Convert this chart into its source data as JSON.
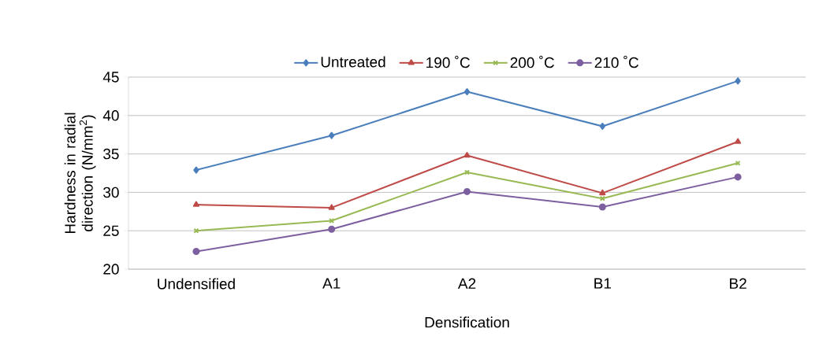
{
  "chart_data": {
    "type": "line",
    "xlabel": "Densification",
    "ylabel": "Hardness in radial direction (N/mm$^{2}$)",
    "categories": [
      "Undensified",
      "A1",
      "A2",
      "B1",
      "B2"
    ],
    "series": [
      {
        "name": "Untreated",
        "color": "#4a7ebb",
        "marker": "diamond",
        "values": [
          32.9,
          37.4,
          43.1,
          38.6,
          44.5
        ]
      },
      {
        "name": "190 ˚C",
        "color": "#be4b48",
        "marker": "triangle",
        "values": [
          28.4,
          28.0,
          34.8,
          29.9,
          36.6
        ]
      },
      {
        "name": "200 ˚C",
        "color": "#98b954",
        "marker": "cross",
        "values": [
          25.0,
          26.3,
          32.6,
          29.2,
          33.8
        ]
      },
      {
        "name": "210 ˚C",
        "color": "#7d5fa0",
        "marker": "circle",
        "values": [
          22.3,
          25.2,
          30.1,
          28.1,
          32.0
        ]
      }
    ],
    "ylim": [
      20,
      45
    ],
    "yticks": [
      20,
      25,
      30,
      35,
      40,
      45
    ],
    "grid": "y",
    "legend": "top",
    "line_style": "solid"
  }
}
